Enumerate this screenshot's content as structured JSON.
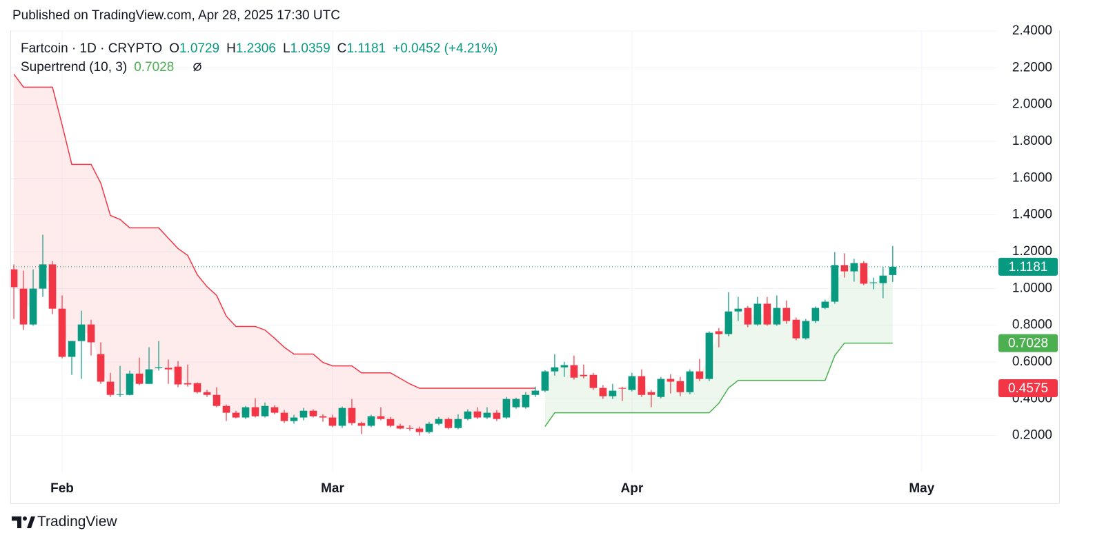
{
  "header": "Published on TradingView.com, Apr 28, 2025 17:30 UTC",
  "legend": {
    "symbol": "Fartcoin · 1D · CRYPTO",
    "ohlc": [
      {
        "key": "O",
        "value": "1.0729"
      },
      {
        "key": "H",
        "value": "1.2306"
      },
      {
        "key": "L",
        "value": "1.0359"
      },
      {
        "key": "C",
        "value": "1.1181"
      }
    ],
    "change": "+0.0452 (+4.21%)",
    "indicator": "Supertrend (10, 3)",
    "indicator_value": "0.7028"
  },
  "brand": "TradingView",
  "chart_data": {
    "type": "candlestick",
    "categories": [
      null,
      null,
      null,
      null,
      null,
      null,
      null,
      null,
      null,
      null,
      null,
      null,
      null,
      null,
      null,
      null,
      null,
      null,
      null,
      null,
      null,
      null,
      null,
      null,
      null,
      null,
      null,
      null,
      null,
      null,
      null,
      null,
      null,
      null,
      null,
      null,
      null,
      null,
      null,
      null,
      null,
      null,
      null,
      null,
      null,
      null,
      null,
      null,
      null,
      null,
      null,
      null,
      null,
      null,
      null,
      null,
      null,
      null,
      null,
      null,
      null,
      null,
      null,
      null,
      null,
      null,
      null,
      null,
      null,
      null,
      null,
      null,
      null,
      null,
      null,
      null,
      null,
      null,
      null,
      null,
      null,
      null,
      null,
      null,
      null,
      null,
      null,
      null,
      null,
      null,
      null,
      null
    ],
    "open": [
      1.104,
      0.999,
      0.804,
      0.999,
      1.131,
      0.89,
      0.628,
      0.714,
      0.804,
      0.643,
      0.493,
      0.421,
      0.421,
      0.537,
      0.481,
      0.566,
      0.568,
      0.575,
      0.485,
      0.485,
      0.436,
      0.421,
      0.361,
      0.324,
      0.298,
      0.354,
      0.305,
      0.354,
      0.324,
      0.279,
      0.298,
      0.335,
      0.305,
      0.298,
      0.253,
      0.35,
      0.268,
      0.253,
      0.305,
      0.29,
      0.253,
      0.241,
      0.238,
      0.219,
      0.264,
      0.29,
      0.241,
      0.29,
      0.331,
      0.298,
      0.324,
      0.298,
      0.354,
      0.354,
      0.421,
      0.444,
      0.549,
      0.571,
      0.583,
      0.53,
      0.53,
      0.459,
      0.414,
      0.459,
      0.448,
      0.523,
      0.436,
      0.41,
      0.508,
      0.496,
      0.436,
      0.549,
      0.508,
      0.767,
      0.752,
      0.875,
      0.894,
      0.804,
      0.917,
      0.804,
      0.894,
      0.83,
      0.729,
      0.823,
      0.894,
      0.928,
      1.127,
      1.093,
      1.138,
      1.029,
      1.029,
      1.0729
    ],
    "high": [
      1.131,
      1.097,
      1.104,
      1.292,
      1.149,
      0.962,
      0.714,
      0.879,
      0.83,
      0.707,
      0.541,
      0.579,
      0.553,
      0.624,
      0.68,
      0.714,
      0.613,
      0.605,
      0.586,
      0.489,
      0.448,
      0.463,
      0.369,
      0.335,
      0.361,
      0.403,
      0.38,
      0.365,
      0.339,
      0.313,
      0.35,
      0.343,
      0.316,
      0.313,
      0.358,
      0.399,
      0.275,
      0.313,
      0.354,
      0.301,
      0.264,
      0.256,
      0.249,
      0.275,
      0.301,
      0.298,
      0.316,
      0.343,
      0.354,
      0.354,
      0.339,
      0.41,
      0.406,
      0.436,
      0.466,
      0.556,
      0.643,
      0.601,
      0.635,
      0.586,
      0.541,
      0.474,
      0.481,
      0.466,
      0.541,
      0.56,
      0.448,
      0.519,
      0.534,
      0.519,
      0.56,
      0.617,
      0.767,
      0.785,
      0.98,
      0.954,
      0.905,
      0.954,
      0.954,
      0.962,
      0.935,
      0.842,
      0.834,
      0.902,
      0.939,
      1.198,
      1.191,
      1.161,
      1.149,
      1.059,
      1.119,
      1.2306
    ],
    "low": [
      0.834,
      0.774,
      0.797,
      0.954,
      0.86,
      0.62,
      0.53,
      0.508,
      0.635,
      0.481,
      0.41,
      0.41,
      0.418,
      0.474,
      0.481,
      0.553,
      0.481,
      0.463,
      0.466,
      0.429,
      0.41,
      0.354,
      0.279,
      0.294,
      0.29,
      0.298,
      0.298,
      0.316,
      0.268,
      0.264,
      0.283,
      0.298,
      0.275,
      0.245,
      0.241,
      0.256,
      0.208,
      0.245,
      0.283,
      0.245,
      0.234,
      0.226,
      0.2,
      0.211,
      0.256,
      0.234,
      0.234,
      0.283,
      0.29,
      0.29,
      0.279,
      0.29,
      0.346,
      0.346,
      0.41,
      0.436,
      0.526,
      0.519,
      0.504,
      0.511,
      0.448,
      0.399,
      0.399,
      0.388,
      0.44,
      0.41,
      0.354,
      0.403,
      0.429,
      0.414,
      0.425,
      0.496,
      0.496,
      0.68,
      0.74,
      0.823,
      0.789,
      0.797,
      0.797,
      0.797,
      0.808,
      0.718,
      0.722,
      0.812,
      0.887,
      0.917,
      1.059,
      1.037,
      1.018,
      0.995,
      0.947,
      1.0359
    ],
    "close": [
      1.007,
      0.804,
      0.999,
      1.131,
      0.89,
      0.628,
      0.714,
      0.804,
      0.707,
      0.493,
      0.421,
      0.425,
      0.537,
      0.481,
      0.56,
      0.571,
      0.56,
      0.478,
      0.478,
      0.436,
      0.421,
      0.361,
      0.324,
      0.298,
      0.354,
      0.305,
      0.361,
      0.324,
      0.279,
      0.298,
      0.335,
      0.305,
      0.298,
      0.253,
      0.35,
      0.268,
      0.253,
      0.305,
      0.29,
      0.253,
      0.238,
      0.238,
      0.219,
      0.264,
      0.29,
      0.241,
      0.29,
      0.331,
      0.298,
      0.324,
      0.29,
      0.399,
      0.399,
      0.421,
      0.444,
      0.549,
      0.571,
      0.583,
      0.515,
      0.523,
      0.459,
      0.414,
      0.444,
      0.455,
      0.523,
      0.421,
      0.421,
      0.508,
      0.493,
      0.436,
      0.549,
      0.508,
      0.759,
      0.752,
      0.875,
      0.89,
      0.804,
      0.917,
      0.804,
      0.894,
      0.823,
      0.729,
      0.823,
      0.894,
      0.928,
      1.127,
      1.093,
      1.138,
      1.026,
      1.033,
      1.07,
      1.1181
    ],
    "up_color": "#089981",
    "down_color": "#f23645",
    "supertrend": {
      "down": {
        "color": "#f23645",
        "fill": "rgba(242,54,69,0.10)",
        "values": [
          2.166,
          2.095,
          2.095,
          2.095,
          2.095,
          1.89,
          1.675,
          1.675,
          1.675,
          1.573,
          1.397,
          1.375,
          1.33,
          1.33,
          1.33,
          1.33,
          1.273,
          1.217,
          1.18,
          1.074,
          1.01,
          0.962,
          0.849,
          0.793,
          0.793,
          0.793,
          0.774,
          0.729,
          0.68,
          0.643,
          0.643,
          0.643,
          0.598,
          0.579,
          0.579,
          0.579,
          0.541,
          0.541,
          0.541,
          0.541,
          0.511,
          0.481,
          0.4575,
          0.4575,
          0.4575,
          0.4575,
          0.4575,
          0.4575,
          0.4575,
          0.4575,
          0.4575,
          0.4575,
          0.4575,
          0.4575,
          0.4575,
          null,
          null,
          null,
          null,
          null,
          null,
          null,
          null,
          null,
          null,
          null,
          null,
          null,
          null,
          null,
          null,
          null,
          null,
          null,
          null,
          null,
          null,
          null,
          null,
          null,
          null,
          null,
          null,
          null,
          null,
          null,
          null,
          null,
          null,
          null,
          null,
          null
        ]
      },
      "up": {
        "color": "#4caf50",
        "fill": "rgba(76,175,80,0.10)",
        "values": [
          null,
          null,
          null,
          null,
          null,
          null,
          null,
          null,
          null,
          null,
          null,
          null,
          null,
          null,
          null,
          null,
          null,
          null,
          null,
          null,
          null,
          null,
          null,
          null,
          null,
          null,
          null,
          null,
          null,
          null,
          null,
          null,
          null,
          null,
          null,
          null,
          null,
          null,
          null,
          null,
          null,
          null,
          null,
          null,
          null,
          null,
          null,
          null,
          null,
          null,
          null,
          null,
          null,
          null,
          null,
          0.249,
          0.324,
          0.324,
          0.324,
          0.324,
          0.324,
          0.324,
          0.324,
          0.324,
          0.324,
          0.324,
          0.324,
          0.324,
          0.324,
          0.324,
          0.324,
          0.324,
          0.324,
          0.376,
          0.459,
          0.5,
          0.5,
          0.5,
          0.5,
          0.5,
          0.5,
          0.5,
          0.5,
          0.5,
          0.5,
          0.635,
          0.7028,
          0.7028,
          0.7028,
          0.7028,
          0.7028,
          0.7028
        ]
      }
    },
    "price_labels": [
      {
        "label": "1.1181",
        "value": 1.1181,
        "color": "#089981"
      },
      {
        "label": "0.7028",
        "value": 0.7028,
        "color": "#4caf50"
      },
      {
        "label": "0.4575",
        "value": 0.4575,
        "color": "#f23645"
      }
    ],
    "last_price_line": true,
    "ylim": [
      0,
      2.4
    ],
    "yticks": [
      {
        "value": 0.2,
        "label": "0.2000"
      },
      {
        "value": 0.4,
        "label": "0.4000"
      },
      {
        "value": 0.6,
        "label": "0.6000"
      },
      {
        "value": 0.8,
        "label": "0.8000"
      },
      {
        "value": 1.0,
        "label": "1.0000"
      },
      {
        "value": 1.2,
        "label": "1.2000"
      },
      {
        "value": 1.4,
        "label": "1.4000"
      },
      {
        "value": 1.6,
        "label": "1.6000"
      },
      {
        "value": 1.8,
        "label": "1.8000"
      },
      {
        "value": 2.0,
        "label": "2.0000"
      },
      {
        "value": 2.2,
        "label": "2.2000"
      },
      {
        "value": 2.4,
        "label": "2.4000"
      }
    ],
    "xlim": [
      -0.36,
      101.8
    ],
    "xticks": [
      {
        "value": 5,
        "label": "Feb"
      },
      {
        "value": 33,
        "label": "Mar"
      },
      {
        "value": 64,
        "label": "Apr"
      },
      {
        "value": 94,
        "label": "May"
      }
    ],
    "grid": true
  }
}
